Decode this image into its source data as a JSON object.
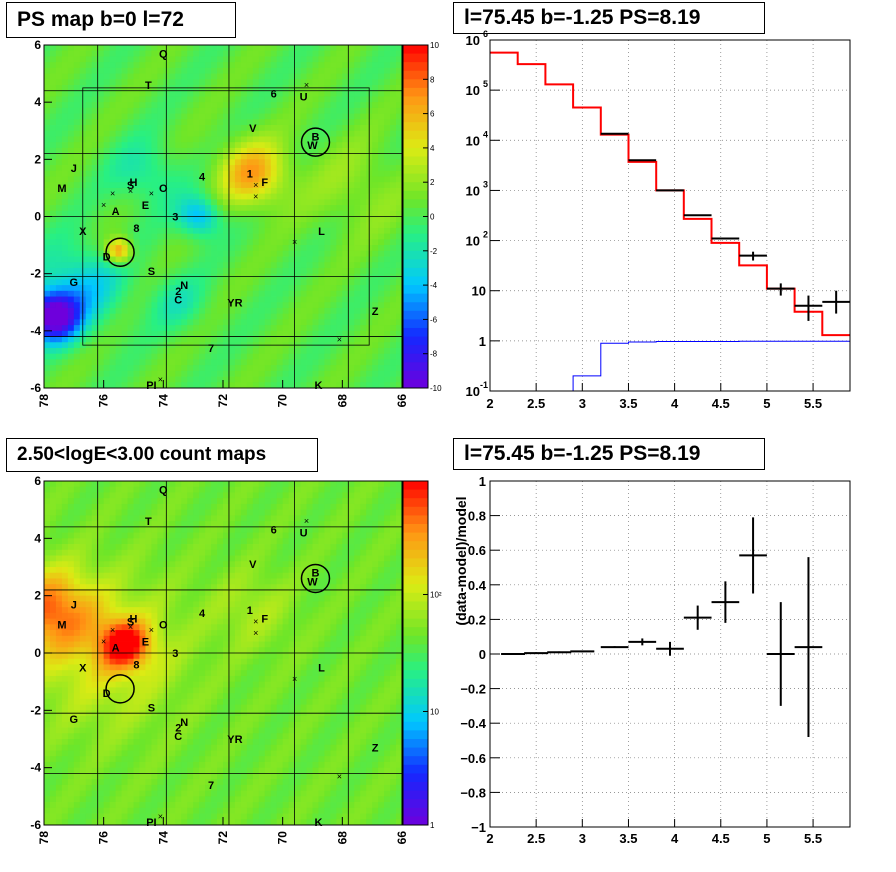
{
  "chart_data": [
    {
      "type": "heatmap",
      "title": "PS map b=0 l=72",
      "x_ticks": [
        "78",
        "76",
        "74",
        "72",
        "70",
        "68",
        "66"
      ],
      "y_ticks": [
        "-6",
        "-4",
        "-2",
        "0",
        "2",
        "4",
        "6"
      ],
      "xlim": [
        78,
        66
      ],
      "ylim": [
        -6,
        6
      ],
      "colorbar_ticks": [
        "10",
        "8",
        "6",
        "4",
        "2",
        "0",
        "-2",
        "-4",
        "-6",
        "-8",
        "-10"
      ],
      "colorbar_range": [
        -10,
        10
      ],
      "circles": [
        {
          "l": 75.45,
          "b": -1.25
        },
        {
          "l": 68.9,
          "b": 2.6
        }
      ],
      "labels": [
        {
          "t": "Q",
          "l": 74.0,
          "b": 5.7
        },
        {
          "t": "T",
          "l": 74.5,
          "b": 4.6
        },
        {
          "t": "6",
          "l": 70.3,
          "b": 4.3
        },
        {
          "t": "U",
          "l": 69.3,
          "b": 4.2
        },
        {
          "t": "V",
          "l": 71.0,
          "b": 3.1
        },
        {
          "t": "B",
          "l": 68.9,
          "b": 2.8
        },
        {
          "t": "W",
          "l": 69.0,
          "b": 2.5
        },
        {
          "t": "J",
          "l": 77.0,
          "b": 1.7
        },
        {
          "t": "M",
          "l": 77.4,
          "b": 1.0
        },
        {
          "t": "H",
          "l": 75.0,
          "b": 1.2
        },
        {
          "t": "S",
          "l": 75.1,
          "b": 1.1
        },
        {
          "t": "O",
          "l": 74.0,
          "b": 1.0
        },
        {
          "t": "4",
          "l": 72.7,
          "b": 1.4
        },
        {
          "t": "1",
          "l": 71.1,
          "b": 1.5
        },
        {
          "t": "F",
          "l": 70.6,
          "b": 1.2
        },
        {
          "t": "E",
          "l": 74.6,
          "b": 0.4
        },
        {
          "t": "A",
          "l": 75.6,
          "b": 0.2
        },
        {
          "t": "3",
          "l": 73.6,
          "b": 0.0
        },
        {
          "t": "X",
          "l": 76.7,
          "b": -0.5
        },
        {
          "t": "8",
          "l": 74.9,
          "b": -0.4
        },
        {
          "t": "L",
          "l": 68.7,
          "b": -0.5
        },
        {
          "t": "D",
          "l": 75.9,
          "b": -1.4
        },
        {
          "t": "S",
          "l": 74.4,
          "b": -1.9
        },
        {
          "t": "G",
          "l": 77.0,
          "b": -2.3
        },
        {
          "t": "N",
          "l": 73.3,
          "b": -2.4
        },
        {
          "t": "2",
          "l": 73.5,
          "b": -2.6
        },
        {
          "t": "C",
          "l": 73.5,
          "b": -2.9
        },
        {
          "t": "YR",
          "l": 71.6,
          "b": -3.0
        },
        {
          "t": "Z",
          "l": 66.9,
          "b": -3.3
        },
        {
          "t": "7",
          "l": 72.4,
          "b": -4.6
        },
        {
          "t": "PI",
          "l": 74.4,
          "b": -5.9
        },
        {
          "t": "K",
          "l": 68.8,
          "b": -5.9
        }
      ]
    },
    {
      "type": "line",
      "title": "l=75.45 b=-1.25 PS=8.19",
      "x_ticks": [
        "2",
        "2.5",
        "3",
        "3.5",
        "4",
        "4.5",
        "5",
        "5.5"
      ],
      "y_ticks": [
        "10^-1",
        "1",
        "10",
        "10^2",
        "10^3",
        "10^4",
        "10^5",
        "10^6"
      ],
      "xlim": [
        2,
        5.9
      ],
      "ylim": [
        0.1,
        1000000
      ],
      "yscale": "log",
      "grid": true,
      "bin_edges": [
        2.0,
        2.3,
        2.6,
        2.9,
        3.2,
        3.5,
        3.8,
        4.1,
        4.4,
        4.7,
        5.0,
        5.3,
        5.6,
        5.9
      ],
      "series": [
        {
          "color": "#ff0000",
          "values": [
            560000,
            330000,
            130000,
            45000,
            13000,
            3700,
            1000,
            270,
            90,
            32,
            11,
            3.8,
            1.3
          ]
        },
        {
          "color": "#0000ff",
          "values": [
            0.1,
            0.1,
            0.1,
            0.2,
            0.9,
            0.95,
            0.97,
            0.97,
            0.97,
            0.98,
            0.98,
            0.98,
            0.98
          ]
        },
        {
          "color": "#000000",
          "points": [
            [
              3.35,
              13500
            ],
            [
              3.65,
              4000
            ],
            [
              3.95,
              1000
            ],
            [
              4.25,
              320
            ],
            [
              4.55,
              110
            ],
            [
              4.85,
              50
            ],
            [
              5.15,
              11
            ],
            [
              5.45,
              5
            ],
            [
              5.75,
              6
            ]
          ],
          "errors": [
            [
              3.35,
              0,
              0
            ],
            [
              3.65,
              0,
              0
            ],
            [
              3.95,
              0,
              0
            ],
            [
              4.25,
              0,
              0
            ],
            [
              4.55,
              0,
              0
            ],
            [
              4.85,
              10,
              10
            ],
            [
              5.15,
              3,
              3
            ],
            [
              5.45,
              2.5,
              3
            ],
            [
              5.75,
              2.5,
              4
            ]
          ]
        }
      ]
    },
    {
      "type": "heatmap",
      "title": "2.50<logE<3.00 count maps",
      "x_ticks": [
        "78",
        "76",
        "74",
        "72",
        "70",
        "68",
        "66"
      ],
      "y_ticks": [
        "-6",
        "-4",
        "-2",
        "0",
        "2",
        "4",
        "6"
      ],
      "xlim": [
        78,
        66
      ],
      "ylim": [
        -6,
        6
      ],
      "colorbar_ticks": [
        "10²",
        "10",
        "1"
      ],
      "colorbar_scale": "log",
      "circles": [
        {
          "l": 75.45,
          "b": -1.25
        },
        {
          "l": 68.9,
          "b": 2.6
        }
      ],
      "labels": [
        {
          "t": "Q",
          "l": 74.0,
          "b": 5.7
        },
        {
          "t": "T",
          "l": 74.5,
          "b": 4.6
        },
        {
          "t": "6",
          "l": 70.3,
          "b": 4.3
        },
        {
          "t": "U",
          "l": 69.3,
          "b": 4.2
        },
        {
          "t": "V",
          "l": 71.0,
          "b": 3.1
        },
        {
          "t": "B",
          "l": 68.9,
          "b": 2.8
        },
        {
          "t": "W",
          "l": 69.0,
          "b": 2.5
        },
        {
          "t": "J",
          "l": 77.0,
          "b": 1.7
        },
        {
          "t": "M",
          "l": 77.4,
          "b": 1.0
        },
        {
          "t": "H",
          "l": 75.0,
          "b": 1.2
        },
        {
          "t": "S",
          "l": 75.1,
          "b": 1.1
        },
        {
          "t": "O",
          "l": 74.0,
          "b": 1.0
        },
        {
          "t": "4",
          "l": 72.7,
          "b": 1.4
        },
        {
          "t": "1",
          "l": 71.1,
          "b": 1.5
        },
        {
          "t": "F",
          "l": 70.6,
          "b": 1.2
        },
        {
          "t": "E",
          "l": 74.6,
          "b": 0.4
        },
        {
          "t": "A",
          "l": 75.6,
          "b": 0.2
        },
        {
          "t": "3",
          "l": 73.6,
          "b": 0.0
        },
        {
          "t": "X",
          "l": 76.7,
          "b": -0.5
        },
        {
          "t": "8",
          "l": 74.9,
          "b": -0.4
        },
        {
          "t": "L",
          "l": 68.7,
          "b": -0.5
        },
        {
          "t": "D",
          "l": 75.9,
          "b": -1.4
        },
        {
          "t": "S",
          "l": 74.4,
          "b": -1.9
        },
        {
          "t": "G",
          "l": 77.0,
          "b": -2.3
        },
        {
          "t": "N",
          "l": 73.3,
          "b": -2.4
        },
        {
          "t": "2",
          "l": 73.5,
          "b": -2.6
        },
        {
          "t": "C",
          "l": 73.5,
          "b": -2.9
        },
        {
          "t": "YR",
          "l": 71.6,
          "b": -3.0
        },
        {
          "t": "Z",
          "l": 66.9,
          "b": -3.3
        },
        {
          "t": "7",
          "l": 72.4,
          "b": -4.6
        },
        {
          "t": "PI",
          "l": 74.4,
          "b": -5.9
        },
        {
          "t": "K",
          "l": 68.8,
          "b": -5.9
        }
      ]
    },
    {
      "type": "scatter",
      "title": "l=75.45 b=-1.25 PS=8.19",
      "ylabel": "(data-model)/model",
      "x_ticks": [
        "2",
        "2.5",
        "3",
        "3.5",
        "4",
        "4.5",
        "5",
        "5.5"
      ],
      "y_ticks": [
        "−1",
        "−0.8",
        "−0.6",
        "−0.4",
        "−0.2",
        "0",
        "0.2",
        "0.4",
        "0.6",
        "0.8",
        "1"
      ],
      "xlim": [
        2,
        5.9
      ],
      "ylim": [
        -1,
        1
      ],
      "grid": true,
      "points": [
        {
          "x": 2.25,
          "y": 0.0,
          "xerr": 0.13,
          "yerr": 0.005
        },
        {
          "x": 2.5,
          "y": 0.005,
          "xerr": 0.13,
          "yerr": 0.005
        },
        {
          "x": 2.75,
          "y": 0.01,
          "xerr": 0.13,
          "yerr": 0.005
        },
        {
          "x": 3.0,
          "y": 0.015,
          "xerr": 0.13,
          "yerr": 0.005
        },
        {
          "x": 3.35,
          "y": 0.04,
          "xerr": 0.15,
          "yerr": 0.005
        },
        {
          "x": 3.65,
          "y": 0.07,
          "xerr": 0.15,
          "yerr": 0.02
        },
        {
          "x": 3.95,
          "y": 0.03,
          "xerr": 0.15,
          "yerr": 0.04
        },
        {
          "x": 4.25,
          "y": 0.21,
          "xerr": 0.15,
          "yerr": 0.07
        },
        {
          "x": 4.55,
          "y": 0.3,
          "xerr": 0.15,
          "yerr": 0.12
        },
        {
          "x": 4.85,
          "y": 0.57,
          "xerr": 0.15,
          "yerr": 0.22
        },
        {
          "x": 5.15,
          "y": 0.0,
          "xerr": 0.15,
          "yerr": 0.3
        },
        {
          "x": 5.45,
          "y": 0.04,
          "xerr": 0.15,
          "yerr": 0.52
        }
      ]
    }
  ]
}
